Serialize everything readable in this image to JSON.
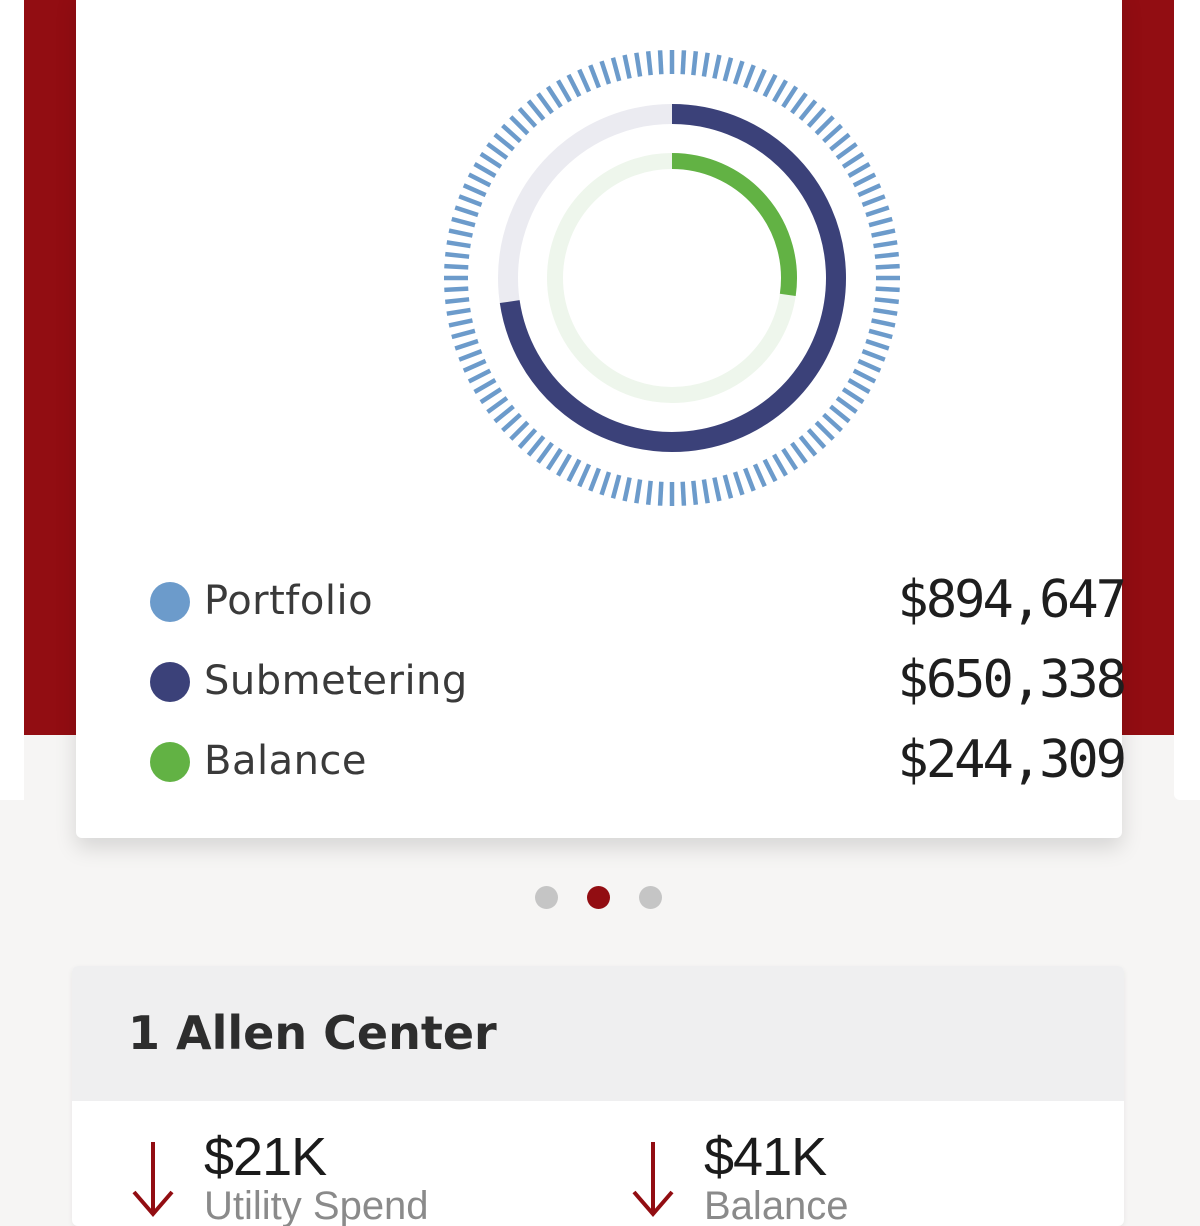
{
  "colors": {
    "brand_red": "#920d12",
    "portfolio": "#6c9bcb",
    "submetering": "#3b4179",
    "balance": "#62b244",
    "ring_track_outer": "#ebebf1",
    "ring_track_inner": "#eef6ec"
  },
  "summary": {
    "legend": [
      {
        "label": "Portfolio",
        "value": "$894,647",
        "color": "#6c9bcb"
      },
      {
        "label": "Submetering",
        "value": "$650,338",
        "color": "#3b4179"
      },
      {
        "label": "Balance",
        "value": "$244,309",
        "color": "#62b244"
      }
    ]
  },
  "chart_data": {
    "type": "radial-progress",
    "series": [
      {
        "name": "Portfolio",
        "value": 894647,
        "fraction": 1.0
      },
      {
        "name": "Submetering",
        "value": 650338,
        "fraction": 0.727
      },
      {
        "name": "Balance",
        "value": 244309,
        "fraction": 0.273
      }
    ]
  },
  "pager": {
    "count": 3,
    "active_index": 1
  },
  "building": {
    "title": "1 Allen Center",
    "metrics": [
      {
        "value": "$21K",
        "label": "Utility Spend",
        "trend": "down",
        "icon": "arrow-down-icon"
      },
      {
        "value": "$41K",
        "label": "Balance",
        "trend": "down",
        "icon": "arrow-down-icon"
      }
    ]
  }
}
